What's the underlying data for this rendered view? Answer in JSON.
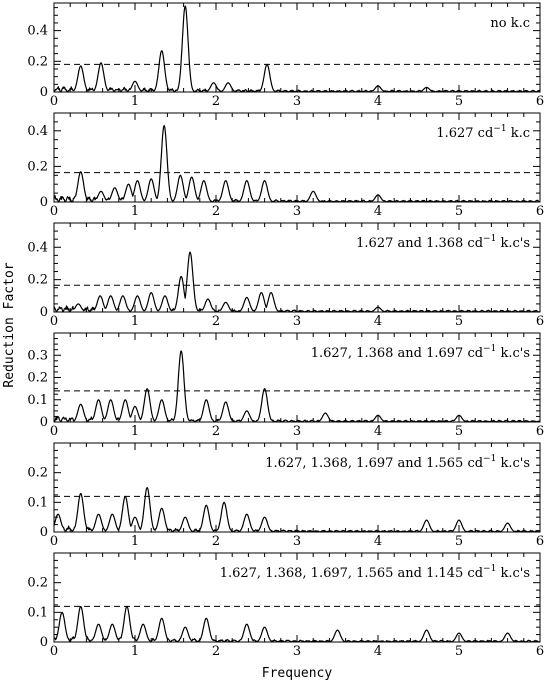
{
  "figure": {
    "xlabel": "Frequency",
    "ylabel": "Reduction Factor"
  },
  "chart_data": [
    {
      "type": "line",
      "label": "no k.c",
      "xlim": [
        0,
        6
      ],
      "ylim": [
        0,
        0.58
      ],
      "yticks": [
        0,
        0.2,
        0.4
      ],
      "xticks": [
        0,
        1,
        2,
        3,
        4,
        5,
        6
      ],
      "threshold": 0.18,
      "peaks": [
        [
          0.33,
          0.17
        ],
        [
          0.58,
          0.19
        ],
        [
          1.0,
          0.07
        ],
        [
          1.33,
          0.27
        ],
        [
          1.62,
          0.56
        ],
        [
          1.97,
          0.06
        ],
        [
          2.15,
          0.06
        ],
        [
          2.63,
          0.18
        ],
        [
          4.0,
          0.04
        ],
        [
          4.6,
          0.03
        ]
      ]
    },
    {
      "type": "line",
      "label": "1.627 cd-1 k.c",
      "label_parts": [
        "1.627 cd",
        "−1",
        " k.c"
      ],
      "xlim": [
        0,
        6
      ],
      "ylim": [
        0,
        0.5
      ],
      "yticks": [
        0,
        0.2,
        0.4
      ],
      "xticks": [
        0,
        1,
        2,
        3,
        4,
        5,
        6
      ],
      "threshold": 0.165,
      "peaks": [
        [
          0.33,
          0.17
        ],
        [
          0.58,
          0.06
        ],
        [
          0.75,
          0.08
        ],
        [
          0.92,
          0.1
        ],
        [
          1.03,
          0.12
        ],
        [
          1.2,
          0.13
        ],
        [
          1.36,
          0.43
        ],
        [
          1.56,
          0.15
        ],
        [
          1.7,
          0.14
        ],
        [
          1.85,
          0.12
        ],
        [
          2.12,
          0.12
        ],
        [
          2.38,
          0.12
        ],
        [
          2.6,
          0.12
        ],
        [
          3.2,
          0.06
        ],
        [
          4.0,
          0.04
        ]
      ]
    },
    {
      "type": "line",
      "label": "1.627 and 1.368 cd-1 k.c's",
      "label_parts": [
        "1.627 and 1.368 cd",
        "−1",
        " k.c's"
      ],
      "xlim": [
        0,
        6
      ],
      "ylim": [
        0,
        0.55
      ],
      "yticks": [
        0,
        0.2,
        0.4
      ],
      "xticks": [
        0,
        1,
        2,
        3,
        4,
        5,
        6
      ],
      "threshold": 0.165,
      "peaks": [
        [
          0.3,
          0.05
        ],
        [
          0.57,
          0.1
        ],
        [
          0.7,
          0.1
        ],
        [
          0.85,
          0.1
        ],
        [
          1.03,
          0.1
        ],
        [
          1.2,
          0.12
        ],
        [
          1.37,
          0.1
        ],
        [
          1.57,
          0.22
        ],
        [
          1.68,
          0.37
        ],
        [
          1.9,
          0.08
        ],
        [
          2.12,
          0.06
        ],
        [
          2.38,
          0.09
        ],
        [
          2.56,
          0.12
        ],
        [
          2.68,
          0.12
        ],
        [
          4.0,
          0.03
        ]
      ]
    },
    {
      "type": "line",
      "label": "1.627, 1.368 and 1.697 cd-1 k.c's",
      "label_parts": [
        "1.627, 1.368 and 1.697 cd",
        "−1",
        " k.c's"
      ],
      "xlim": [
        0,
        6
      ],
      "ylim": [
        0,
        0.4
      ],
      "yticks": [
        0,
        0.1,
        0.2,
        0.3
      ],
      "xticks": [
        0,
        1,
        2,
        3,
        4,
        5,
        6
      ],
      "threshold": 0.14,
      "peaks": [
        [
          0.33,
          0.08
        ],
        [
          0.55,
          0.1
        ],
        [
          0.7,
          0.1
        ],
        [
          0.88,
          0.1
        ],
        [
          1.0,
          0.07
        ],
        [
          1.15,
          0.15
        ],
        [
          1.33,
          0.1
        ],
        [
          1.57,
          0.32
        ],
        [
          1.88,
          0.1
        ],
        [
          2.12,
          0.09
        ],
        [
          2.38,
          0.05
        ],
        [
          2.6,
          0.15
        ],
        [
          3.35,
          0.04
        ],
        [
          4.0,
          0.03
        ],
        [
          5.0,
          0.03
        ]
      ]
    },
    {
      "type": "line",
      "label": "1.627, 1.368, 1.697 and 1.565 cd-1 k.c's",
      "label_parts": [
        "1.627, 1.368, 1.697 and 1.565 cd",
        "−1",
        " k.c's"
      ],
      "xlim": [
        0,
        6
      ],
      "ylim": [
        0,
        0.3
      ],
      "yticks": [
        0,
        0.1,
        0.2
      ],
      "xticks": [
        0,
        1,
        2,
        3,
        4,
        5,
        6
      ],
      "threshold": 0.12,
      "peaks": [
        [
          0.05,
          0.06
        ],
        [
          0.33,
          0.13
        ],
        [
          0.55,
          0.06
        ],
        [
          0.72,
          0.06
        ],
        [
          0.88,
          0.12
        ],
        [
          1.0,
          0.05
        ],
        [
          1.15,
          0.15
        ],
        [
          1.33,
          0.08
        ],
        [
          1.62,
          0.05
        ],
        [
          1.88,
          0.09
        ],
        [
          2.1,
          0.1
        ],
        [
          2.38,
          0.06
        ],
        [
          2.6,
          0.05
        ],
        [
          4.6,
          0.04
        ],
        [
          5.0,
          0.04
        ],
        [
          5.6,
          0.03
        ]
      ]
    },
    {
      "type": "line",
      "label": "1.627, 1.368, 1.697, 1.565 and 1.145 cd-1 k.c's",
      "label_parts": [
        "1.627, 1.368, 1.697, 1.565 and 1.145 cd",
        "−1",
        " k.c's"
      ],
      "xlim": [
        0,
        6
      ],
      "ylim": [
        0,
        0.3
      ],
      "yticks": [
        0,
        0.1,
        0.2
      ],
      "xticks": [
        0,
        1,
        2,
        3,
        4,
        5,
        6
      ],
      "threshold": 0.12,
      "peaks": [
        [
          0.1,
          0.1
        ],
        [
          0.33,
          0.12
        ],
        [
          0.55,
          0.06
        ],
        [
          0.72,
          0.06
        ],
        [
          0.9,
          0.12
        ],
        [
          1.1,
          0.06
        ],
        [
          1.33,
          0.08
        ],
        [
          1.62,
          0.05
        ],
        [
          1.88,
          0.08
        ],
        [
          2.38,
          0.06
        ],
        [
          2.6,
          0.05
        ],
        [
          3.5,
          0.04
        ],
        [
          4.6,
          0.04
        ],
        [
          5.0,
          0.03
        ],
        [
          5.6,
          0.03
        ]
      ]
    }
  ]
}
